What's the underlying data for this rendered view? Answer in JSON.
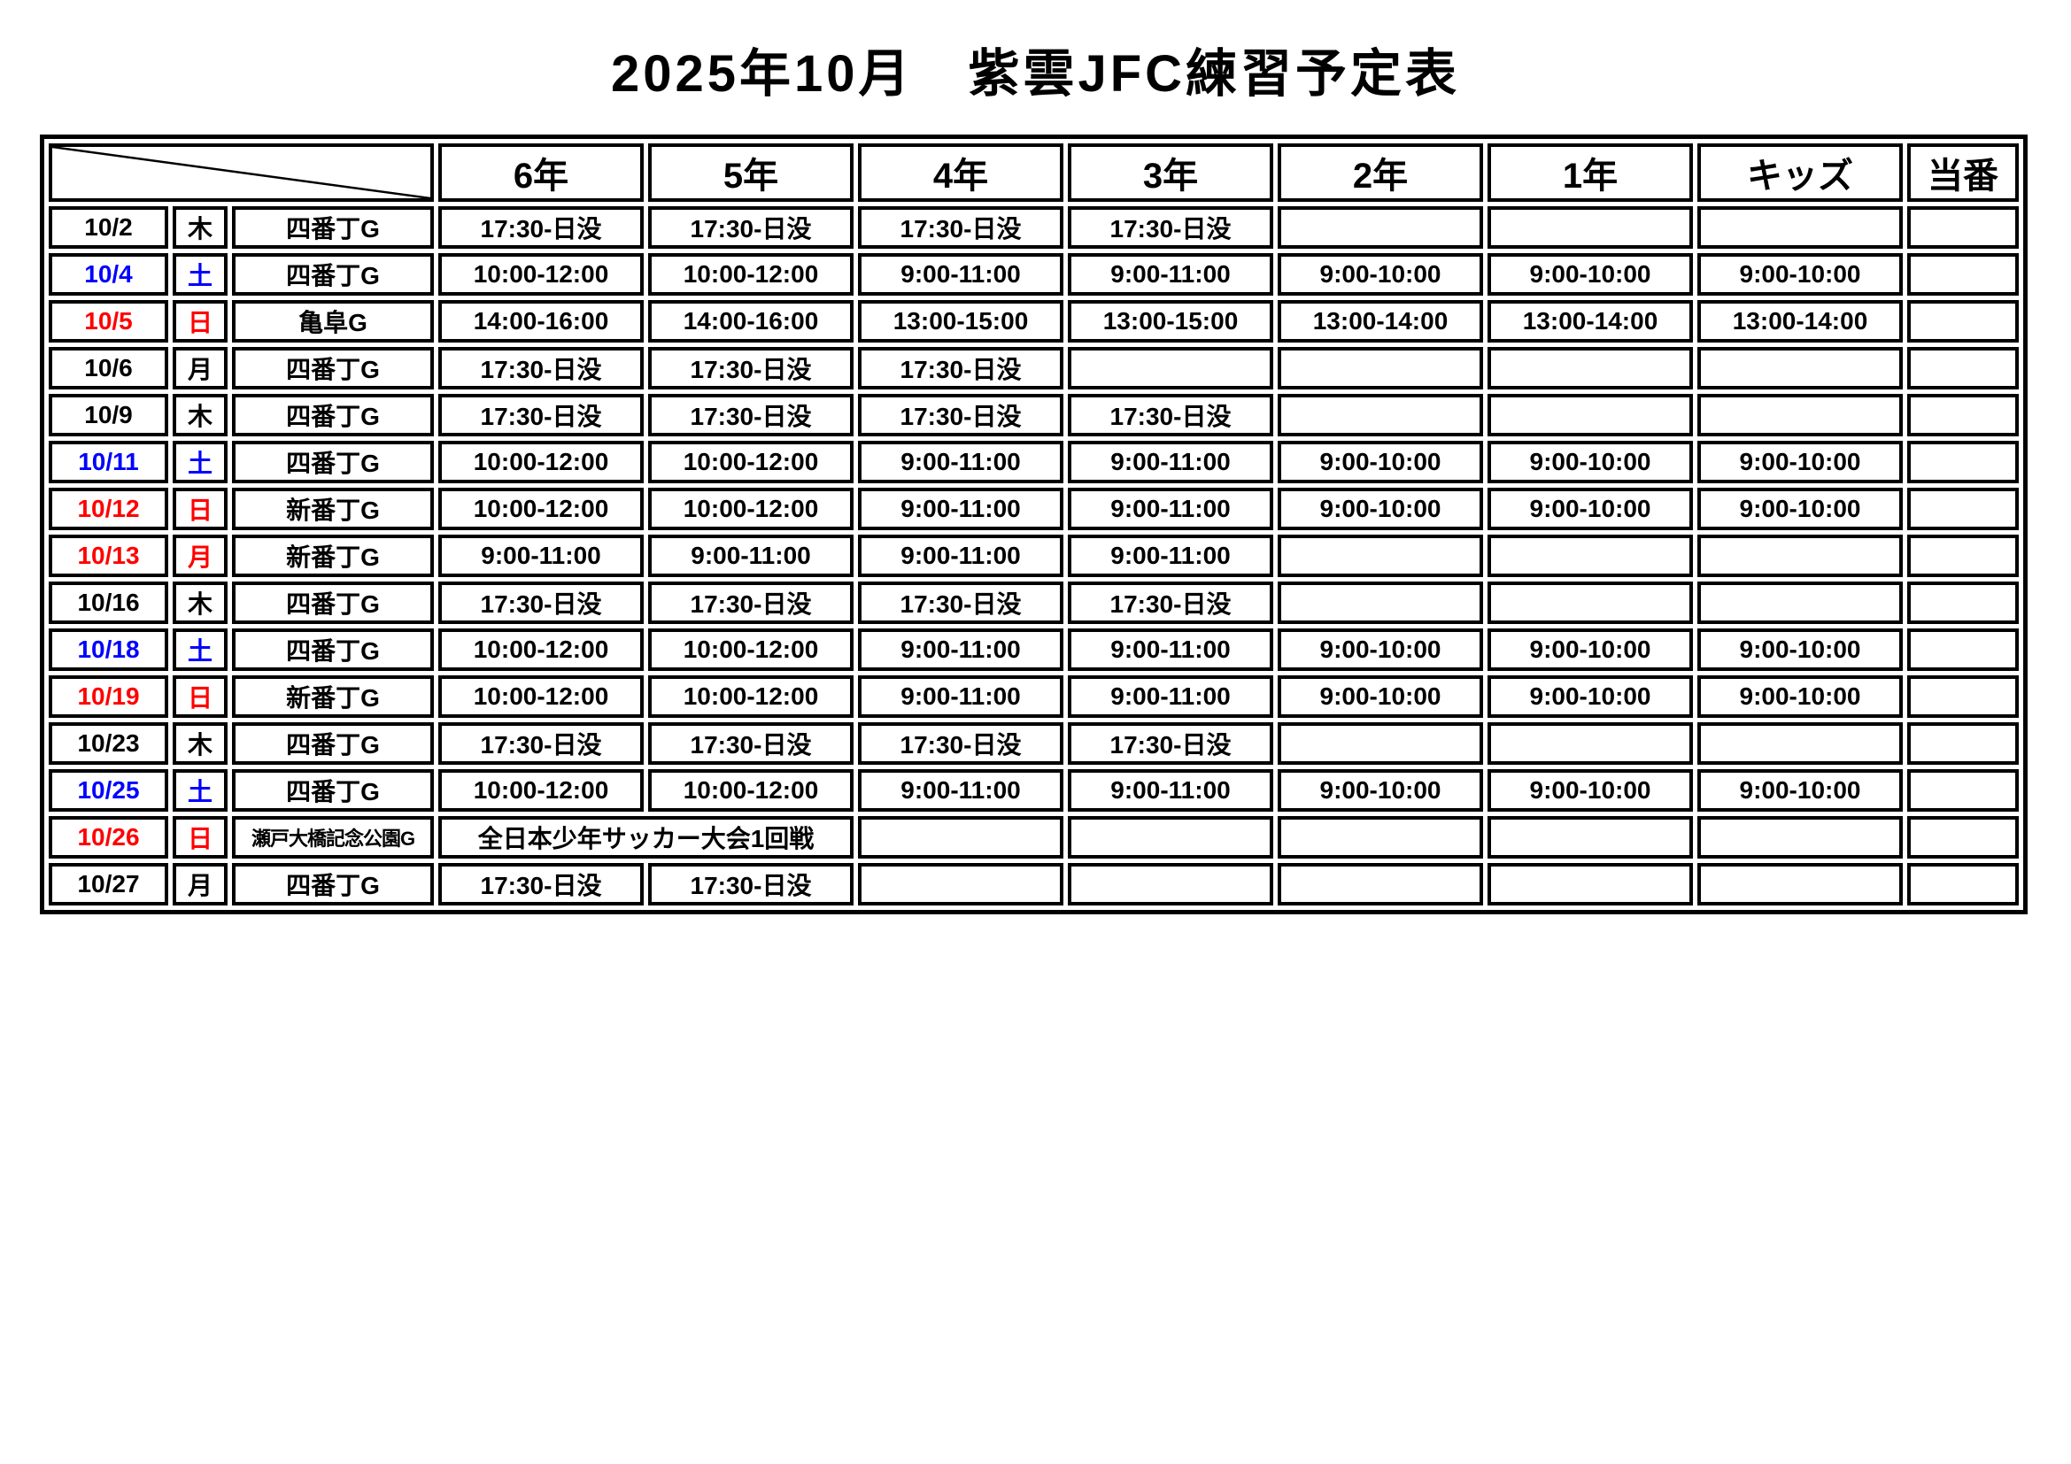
{
  "title": "2025年10月　紫雲JFC練習予定表",
  "colors": {
    "black": "#000000",
    "saturday_blue": "#0000ff",
    "sunday_red": "#ff0000"
  },
  "table": {
    "corner_label": "",
    "columns": [
      "6年",
      "5年",
      "4年",
      "3年",
      "2年",
      "1年",
      "キッズ",
      "当番"
    ],
    "rows": [
      {
        "date": "10/2",
        "day": "木",
        "color": "black",
        "location": "四番丁G",
        "cells": [
          "17:30-日没",
          "17:30-日没",
          "17:30-日没",
          "17:30-日没",
          "",
          "",
          "",
          ""
        ]
      },
      {
        "date": "10/4",
        "day": "土",
        "color": "saturday_blue",
        "location": "四番丁G",
        "cells": [
          "10:00-12:00",
          "10:00-12:00",
          "9:00-11:00",
          "9:00-11:00",
          "9:00-10:00",
          "9:00-10:00",
          "9:00-10:00",
          ""
        ]
      },
      {
        "date": "10/5",
        "day": "日",
        "color": "sunday_red",
        "location": "亀阜G",
        "cells": [
          "14:00-16:00",
          "14:00-16:00",
          "13:00-15:00",
          "13:00-15:00",
          "13:00-14:00",
          "13:00-14:00",
          "13:00-14:00",
          ""
        ]
      },
      {
        "date": "10/6",
        "day": "月",
        "color": "black",
        "location": "四番丁G",
        "cells": [
          "17:30-日没",
          "17:30-日没",
          "17:30-日没",
          "",
          "",
          "",
          "",
          ""
        ]
      },
      {
        "date": "10/9",
        "day": "木",
        "color": "black",
        "location": "四番丁G",
        "cells": [
          "17:30-日没",
          "17:30-日没",
          "17:30-日没",
          "17:30-日没",
          "",
          "",
          "",
          ""
        ]
      },
      {
        "date": "10/11",
        "day": "土",
        "color": "saturday_blue",
        "location": "四番丁G",
        "cells": [
          "10:00-12:00",
          "10:00-12:00",
          "9:00-11:00",
          "9:00-11:00",
          "9:00-10:00",
          "9:00-10:00",
          "9:00-10:00",
          ""
        ]
      },
      {
        "date": "10/12",
        "day": "日",
        "color": "sunday_red",
        "location": "新番丁G",
        "cells": [
          "10:00-12:00",
          "10:00-12:00",
          "9:00-11:00",
          "9:00-11:00",
          "9:00-10:00",
          "9:00-10:00",
          "9:00-10:00",
          ""
        ]
      },
      {
        "date": "10/13",
        "day": "月",
        "color": "sunday_red",
        "location": "新番丁G",
        "cells": [
          "9:00-11:00",
          "9:00-11:00",
          "9:00-11:00",
          "9:00-11:00",
          "",
          "",
          "",
          ""
        ]
      },
      {
        "date": "10/16",
        "day": "木",
        "color": "black",
        "location": "四番丁G",
        "cells": [
          "17:30-日没",
          "17:30-日没",
          "17:30-日没",
          "17:30-日没",
          "",
          "",
          "",
          ""
        ]
      },
      {
        "date": "10/18",
        "day": "土",
        "color": "saturday_blue",
        "location": "四番丁G",
        "cells": [
          "10:00-12:00",
          "10:00-12:00",
          "9:00-11:00",
          "9:00-11:00",
          "9:00-10:00",
          "9:00-10:00",
          "9:00-10:00",
          ""
        ]
      },
      {
        "date": "10/19",
        "day": "日",
        "color": "sunday_red",
        "location": "新番丁G",
        "cells": [
          "10:00-12:00",
          "10:00-12:00",
          "9:00-11:00",
          "9:00-11:00",
          "9:00-10:00",
          "9:00-10:00",
          "9:00-10:00",
          ""
        ]
      },
      {
        "date": "10/23",
        "day": "木",
        "color": "black",
        "location": "四番丁G",
        "cells": [
          "17:30-日没",
          "17:30-日没",
          "17:30-日没",
          "17:30-日没",
          "",
          "",
          "",
          ""
        ]
      },
      {
        "date": "10/25",
        "day": "土",
        "color": "saturday_blue",
        "location": "四番丁G",
        "cells": [
          "10:00-12:00",
          "10:00-12:00",
          "9:00-11:00",
          "9:00-11:00",
          "9:00-10:00",
          "9:00-10:00",
          "9:00-10:00",
          ""
        ]
      },
      {
        "date": "10/26",
        "day": "日",
        "color": "sunday_red",
        "location": "瀬戸大橋記念公園G",
        "location_small": true,
        "event": "全日本少年サッカー大会1回戦",
        "event_span": 2,
        "cells": [
          "",
          "",
          "",
          "",
          "",
          ""
        ]
      },
      {
        "date": "10/27",
        "day": "月",
        "color": "black",
        "location": "四番丁G",
        "cells": [
          "17:30-日没",
          "17:30-日没",
          "",
          "",
          "",
          "",
          "",
          ""
        ]
      }
    ]
  }
}
